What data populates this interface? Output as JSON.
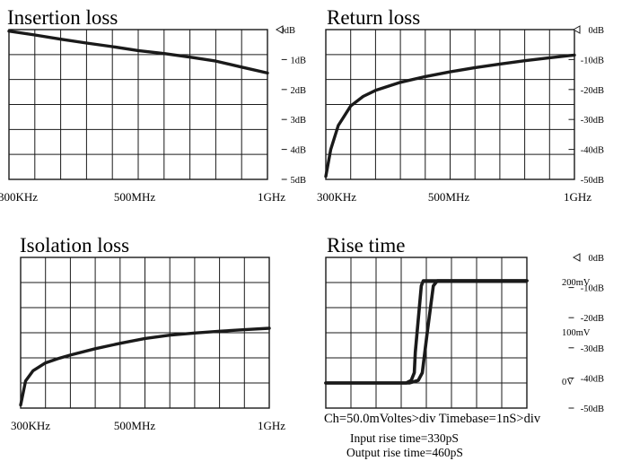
{
  "chart_data": [
    {
      "type": "line",
      "title": "Insertion loss",
      "x_ticks": [
        "300KHz",
        "500MHz",
        "1GHz"
      ],
      "y_ticks": [
        "0dB",
        "1dB",
        "2dB",
        "3dB",
        "4dB",
        "5dB"
      ],
      "reference_marker": "0dB",
      "ylim": [
        -5,
        0
      ],
      "grid": true,
      "series": [
        {
          "x": [
            0,
            0.1,
            0.2,
            0.3,
            0.4,
            0.5,
            0.6,
            0.7,
            0.8,
            0.9,
            1.0
          ],
          "y": [
            -0.05,
            -0.18,
            -0.32,
            -0.45,
            -0.57,
            -0.7,
            -0.8,
            -0.92,
            -1.05,
            -1.25,
            -1.45
          ]
        }
      ]
    },
    {
      "type": "line",
      "title": "Return loss",
      "x_ticks": [
        "300KHz",
        "500MHz",
        "1GHz"
      ],
      "y_ticks": [
        "0dB",
        "-10dB",
        "-20dB",
        "-30dB",
        "-40dB",
        "-50dB"
      ],
      "reference_marker": "0dB",
      "ylim": [
        -50,
        0
      ],
      "grid": true,
      "series": [
        {
          "x": [
            0,
            0.02,
            0.05,
            0.1,
            0.15,
            0.2,
            0.3,
            0.4,
            0.5,
            0.6,
            0.7,
            0.8,
            0.9,
            1.0
          ],
          "y": [
            -49,
            -40,
            -32,
            -25.5,
            -22.3,
            -20.3,
            -17.6,
            -15.7,
            -14.1,
            -12.7,
            -11.5,
            -10.4,
            -9.4,
            -8.5
          ]
        }
      ]
    },
    {
      "type": "line",
      "title": "Isolation loss",
      "x_ticks": [
        "300KHz",
        "500MHz",
        "1GHz"
      ],
      "y_ticks": [
        "0dB",
        "-10dB",
        "-20dB",
        "-30dB",
        "-40dB",
        "-50dB"
      ],
      "reference_marker": "0dB",
      "ylim": [
        -50,
        0
      ],
      "grid": true,
      "series": [
        {
          "x": [
            0,
            0.02,
            0.05,
            0.1,
            0.15,
            0.2,
            0.3,
            0.4,
            0.5,
            0.6,
            0.7,
            0.8,
            0.9,
            1.0
          ],
          "y": [
            -49,
            -41,
            -37.6,
            -35,
            -33.6,
            -32.4,
            -30.3,
            -28.5,
            -26.9,
            -25.8,
            -25.1,
            -24.5,
            -24,
            -23.5
          ]
        }
      ]
    },
    {
      "type": "line",
      "title": "Rise time",
      "y_ticks": [
        "200mV",
        "100mV",
        "0V"
      ],
      "ylim": [
        0,
        200
      ],
      "grid": true,
      "series": [
        {
          "x": [
            0,
            4.0,
            4.25,
            4.4,
            4.45,
            4.75,
            4.85,
            10
          ],
          "y": [
            0,
            0,
            5,
            20,
            60,
            190,
            200,
            200
          ]
        },
        {
          "x": [
            0,
            4.15,
            4.6,
            4.8,
            5.05,
            5.35,
            5.55,
            10
          ],
          "y": [
            0,
            0,
            5,
            20,
            100,
            190,
            200,
            200
          ]
        }
      ],
      "notes": [
        "Ch=50.0mVoltes>div  Timebase=1nS>div",
        "Input rise time=330pS",
        "Output rise time=460pS"
      ]
    }
  ]
}
